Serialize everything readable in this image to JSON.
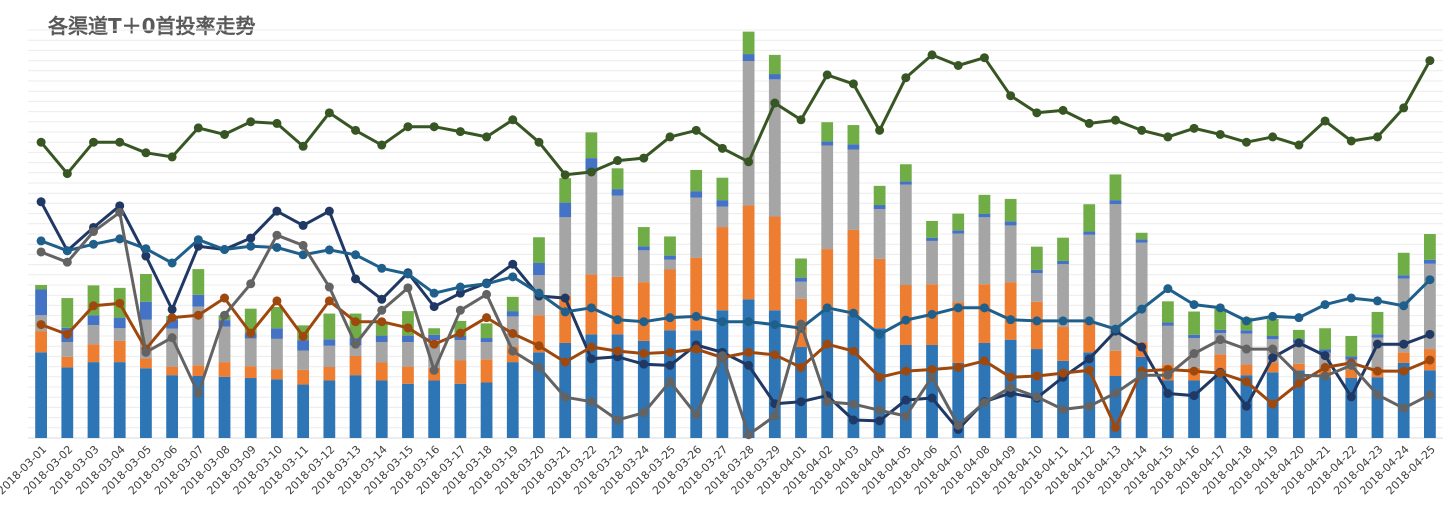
{
  "chart_data": {
    "type": "bar",
    "title": "各渠道T＋0首投率走势",
    "xlabel": "",
    "ylabel": "",
    "ylim": [
      0,
      100
    ],
    "grid": true,
    "legend": "none",
    "categories": [
      "2018-03-01",
      "2018-03-02",
      "2018-03-03",
      "2018-03-04",
      "2018-03-05",
      "2018-03-06",
      "2018-03-07",
      "2018-03-08",
      "2018-03-09",
      "2018-03-10",
      "2018-03-11",
      "2018-03-12",
      "2018-03-13",
      "2018-03-14",
      "2018-03-15",
      "2018-03-16",
      "2018-03-17",
      "2018-03-18",
      "2018-03-19",
      "2018-03-20",
      "2018-03-21",
      "2018-03-22",
      "2018-03-23",
      "2018-03-24",
      "2018-03-25",
      "2018-03-26",
      "2018-03-27",
      "2018-03-28",
      "2018-03-29",
      "2018-04-01",
      "2018-04-02",
      "2018-04-03",
      "2018-04-04",
      "2018-04-05",
      "2018-04-06",
      "2018-04-07",
      "2018-04-08",
      "2018-04-09",
      "2018-04-10",
      "2018-04-11",
      "2018-04-12",
      "2018-04-13",
      "2018-04-14",
      "2018-04-15",
      "2018-04-16",
      "2018-04-17",
      "2018-04-18",
      "2018-04-19",
      "2018-04-20",
      "2018-04-21",
      "2018-04-22",
      "2018-04-23",
      "2018-04-24",
      "2018-04-25"
    ],
    "stacked_series": [
      {
        "color": "#2e75b6",
        "values": [
          21.0,
          17.3,
          18.6,
          18.6,
          17.1,
          15.4,
          15.2,
          15.0,
          14.7,
          14.4,
          13.1,
          14.1,
          15.4,
          14.1,
          13.3,
          14.1,
          13.3,
          13.6,
          18.6,
          21.0,
          23.3,
          25.4,
          25.4,
          23.8,
          26.4,
          26.4,
          31.3,
          34.0,
          31.3,
          22.3,
          31.1,
          30.1,
          26.9,
          22.8,
          22.8,
          18.4,
          23.3,
          24.1,
          21.8,
          18.9,
          21.0,
          15.2,
          19.9,
          14.1,
          14.1,
          16.6,
          15.4,
          16.1,
          16.6,
          14.9,
          14.7,
          14.9,
          18.4,
          16.6
        ]
      },
      {
        "color": "#ed7d31",
        "values": [
          5.2,
          2.6,
          4.4,
          5.2,
          2.4,
          2.1,
          2.6,
          3.6,
          2.9,
          2.4,
          3.6,
          3.3,
          4.7,
          4.4,
          4.2,
          3.1,
          5.7,
          5.7,
          3.9,
          9.1,
          11.6,
          14.7,
          14.1,
          14.4,
          14.9,
          17.8,
          20.4,
          23.0,
          23.0,
          11.8,
          15.2,
          20.9,
          17.0,
          14.7,
          14.9,
          14.9,
          14.4,
          14.1,
          11.6,
          8.3,
          7.5,
          6.2,
          3.6,
          3.9,
          3.1,
          3.9,
          2.6,
          2.4,
          1.6,
          2.1,
          2.1,
          2.1,
          2.6,
          5.2
        ]
      },
      {
        "color": "#a5a5a5",
        "values": [
          3.9,
          3.6,
          4.7,
          3.1,
          9.5,
          9.3,
          14.4,
          8.7,
          6.8,
          7.5,
          4.7,
          5.2,
          2.6,
          5.0,
          6.0,
          6.8,
          5.0,
          4.2,
          7.3,
          9.8,
          19.2,
          25.0,
          19.9,
          7.8,
          2.4,
          14.7,
          5.0,
          35.4,
          33.6,
          4.2,
          25.4,
          19.7,
          12.2,
          24.6,
          10.6,
          16.8,
          16.4,
          13.9,
          7.0,
          15.4,
          21.3,
          35.9,
          24.4,
          9.5,
          7.3,
          5.2,
          7.6,
          5.7,
          5.2,
          3.9,
          2.4,
          7.6,
          18.1,
          20.9
        ]
      },
      {
        "color": "#4472c4",
        "values": [
          6.3,
          3.5,
          2.4,
          2.6,
          4.4,
          2.3,
          2.9,
          1.6,
          1.3,
          2.6,
          2.6,
          1.6,
          1.8,
          1.6,
          1.6,
          1.3,
          1.0,
          1.0,
          1.3,
          3.0,
          3.6,
          3.5,
          1.6,
          1.0,
          1.0,
          1.6,
          1.6,
          1.7,
          1.3,
          1.0,
          1.0,
          1.3,
          1.0,
          0.8,
          0.8,
          0.8,
          0.8,
          1.0,
          0.8,
          0.8,
          0.8,
          1.0,
          0.8,
          0.8,
          0.8,
          0.8,
          0.8,
          0.8,
          0.8,
          0.8,
          0.8,
          0.8,
          0.8,
          1.0
        ]
      },
      {
        "color": "#70ad47",
        "values": [
          1.1,
          7.3,
          7.3,
          7.3,
          6.8,
          0.8,
          6.3,
          1.2,
          6.0,
          5.2,
          3.6,
          6.3,
          6.0,
          3.1,
          6.0,
          1.6,
          3.7,
          3.6,
          3.5,
          6.3,
          6.0,
          6.3,
          5.1,
          4.7,
          4.7,
          5.2,
          5.5,
          5.5,
          4.7,
          4.7,
          4.7,
          4.7,
          4.7,
          4.2,
          4.1,
          4.1,
          4.7,
          5.5,
          5.7,
          5.7,
          6.7,
          6.3,
          1.6,
          5.2,
          5.7,
          5.2,
          3.1,
          4.2,
          2.3,
          5.2,
          5.0,
          5.5,
          5.5,
          6.3
        ]
      }
    ],
    "line_series": [
      {
        "color": "#375623",
        "values": [
          72.5,
          64.8,
          72.5,
          72.5,
          69.9,
          68.9,
          76.0,
          74.4,
          77.5,
          77.1,
          71.5,
          79.7,
          75.4,
          71.8,
          76.3,
          76.3,
          75.1,
          73.8,
          78.0,
          72.5,
          64.5,
          65.2,
          68.0,
          68.6,
          73.8,
          75.4,
          71.0,
          67.7,
          82.1,
          78.0,
          89.0,
          86.8,
          75.4,
          88.3,
          93.9,
          91.3,
          93.2,
          83.9,
          79.7,
          80.3,
          77.1,
          77.9,
          75.4,
          73.8,
          75.9,
          74.4,
          72.5,
          73.8,
          71.8,
          77.7,
          72.8,
          73.8,
          80.9,
          92.5
        ]
      },
      {
        "color": "#1f3864",
        "values": [
          57.9,
          45.9,
          51.6,
          56.9,
          44.6,
          31.5,
          47.0,
          46.2,
          49.0,
          55.6,
          52.1,
          55.6,
          39.0,
          34.0,
          40.5,
          32.2,
          35.5,
          38.0,
          42.6,
          34.8,
          34.3,
          19.4,
          19.9,
          18.1,
          17.8,
          22.8,
          21.0,
          17.8,
          8.4,
          8.9,
          10.4,
          4.4,
          4.2,
          9.3,
          9.8,
          2.1,
          8.9,
          11.0,
          9.8,
          14.9,
          19.4,
          26.2,
          22.3,
          10.9,
          10.4,
          16.1,
          7.8,
          19.7,
          23.3,
          20.2,
          10.1,
          23.0,
          23.0,
          25.4
        ]
      },
      {
        "color": "#1f5f8b",
        "values": [
          48.3,
          45.9,
          47.5,
          48.8,
          46.4,
          42.9,
          48.6,
          46.2,
          47.0,
          46.7,
          44.9,
          46.1,
          44.9,
          41.6,
          40.2,
          35.5,
          37.0,
          37.8,
          39.5,
          35.5,
          30.9,
          31.9,
          29.0,
          28.5,
          29.5,
          29.8,
          28.5,
          28.5,
          27.8,
          26.9,
          31.9,
          30.6,
          25.4,
          28.9,
          30.3,
          31.9,
          31.9,
          29.0,
          28.7,
          28.7,
          28.7,
          26.7,
          31.6,
          36.6,
          32.7,
          31.9,
          28.7,
          29.8,
          29.5,
          32.7,
          34.3,
          33.6,
          32.4,
          38.8
        ]
      },
      {
        "color": "#9e480e",
        "values": [
          27.8,
          25.4,
          32.4,
          33.0,
          21.8,
          29.5,
          30.1,
          34.3,
          25.7,
          33.6,
          24.9,
          33.6,
          28.5,
          28.5,
          27.0,
          23.0,
          25.7,
          29.5,
          25.6,
          22.6,
          18.6,
          22.3,
          21.3,
          20.7,
          21.0,
          21.8,
          19.7,
          21.0,
          20.4,
          17.3,
          23.0,
          21.3,
          14.9,
          16.4,
          16.8,
          17.3,
          18.9,
          14.9,
          15.2,
          15.9,
          16.6,
          2.6,
          16.4,
          16.8,
          16.4,
          15.9,
          13.8,
          8.3,
          13.4,
          17.3,
          18.4,
          16.4,
          16.4,
          19.1
        ]
      },
      {
        "color": "#636363",
        "values": [
          45.6,
          43.1,
          50.6,
          55.3,
          21.0,
          24.6,
          10.9,
          30.1,
          37.8,
          49.7,
          47.2,
          37.0,
          23.0,
          31.3,
          36.8,
          16.6,
          31.3,
          35.2,
          21.3,
          17.3,
          10.0,
          8.9,
          4.4,
          6.2,
          13.8,
          5.7,
          20.2,
          0.8,
          5.4,
          27.9,
          8.9,
          8.3,
          6.8,
          5.4,
          14.9,
          3.1,
          8.7,
          12.4,
          10.1,
          7.0,
          7.8,
          11.0,
          15.4,
          15.4,
          20.7,
          24.1,
          21.8,
          21.8,
          15.4,
          15.2,
          17.8,
          10.6,
          7.3,
          10.6
        ]
      }
    ]
  }
}
